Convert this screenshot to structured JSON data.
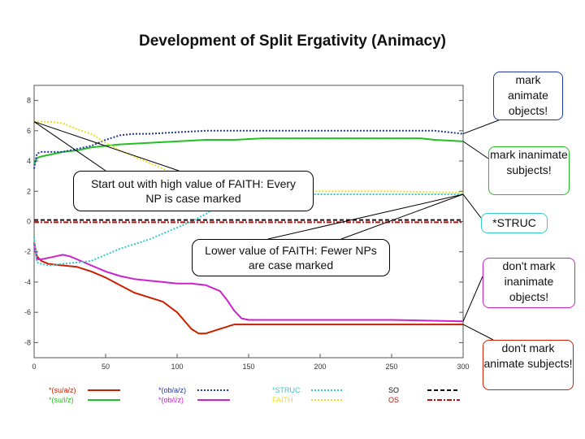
{
  "title": "Development of Split Ergativity (Animacy)",
  "colors": {
    "su_a": "#cc1f00",
    "su_i": "#22c022",
    "ob_a": "#2233aa",
    "ob_i": "#cc22cc",
    "struc": "#33cccc",
    "faith": "#eedd22",
    "so": "#111111",
    "os": "#bb1111"
  },
  "callouts": {
    "start": "Start out with high value of FAITH: Every NP is case marked",
    "lower": "Lower value of FAITH: Fewer NPs are case marked"
  },
  "notes": {
    "mark_animate_objects": "mark animate objects!",
    "mark_inanimate_subjects": "mark inanimate subjects!",
    "struc": "*STRUC",
    "dont_mark_inanimate_objects": "don't mark inanimate objects!",
    "dont_mark_animate_subjects": "don't mark animate subjects!"
  },
  "chart_data": {
    "type": "line",
    "title": "",
    "xlabel": "",
    "ylabel": "",
    "xlim": [
      0,
      300
    ],
    "ylim": [
      -9,
      9
    ],
    "xticks": [
      0,
      50,
      100,
      150,
      200,
      250,
      300
    ],
    "yticks": [
      -8,
      -6,
      -4,
      -2,
      0,
      2,
      4,
      6,
      8
    ],
    "grid": false,
    "legend_position": "bottom",
    "series": [
      {
        "name": "*(su/a/z)",
        "color_key": "su_a",
        "dash": "solid",
        "x": [
          0,
          2,
          5,
          10,
          20,
          30,
          40,
          50,
          60,
          70,
          80,
          90,
          100,
          110,
          115,
          120,
          130,
          140,
          150,
          160,
          200,
          250,
          280,
          300
        ],
        "y": [
          -1.4,
          -2.3,
          -2.6,
          -2.8,
          -2.9,
          -3.0,
          -3.3,
          -3.7,
          -4.2,
          -4.7,
          -5.0,
          -5.3,
          -6.0,
          -7.1,
          -7.4,
          -7.4,
          -7.1,
          -6.8,
          -6.8,
          -6.8,
          -6.8,
          -6.8,
          -6.8,
          -6.8
        ]
      },
      {
        "name": "*(su/i/z)",
        "color_key": "su_i",
        "dash": "solid",
        "x": [
          0,
          2,
          5,
          10,
          20,
          30,
          40,
          50,
          60,
          80,
          100,
          120,
          140,
          160,
          200,
          250,
          270,
          280,
          300
        ],
        "y": [
          3.8,
          4.2,
          4.3,
          4.4,
          4.6,
          4.7,
          4.9,
          5.0,
          5.1,
          5.2,
          5.3,
          5.4,
          5.4,
          5.5,
          5.5,
          5.5,
          5.5,
          5.4,
          5.3
        ]
      },
      {
        "name": "*(ob/a/z)",
        "color_key": "ob_a",
        "dash": "dotted",
        "x": [
          0,
          2,
          5,
          10,
          20,
          30,
          40,
          50,
          60,
          70,
          80,
          100,
          120,
          140,
          160,
          200,
          250,
          280,
          290,
          300
        ],
        "y": [
          3.5,
          4.5,
          4.6,
          4.6,
          4.6,
          4.8,
          5.0,
          5.4,
          5.7,
          5.8,
          5.8,
          5.9,
          6.0,
          6.0,
          6.0,
          6.0,
          6.0,
          6.0,
          5.9,
          5.8
        ]
      },
      {
        "name": "*(ob/i/z)",
        "color_key": "ob_i",
        "dash": "solid",
        "x": [
          0,
          2,
          5,
          10,
          15,
          20,
          25,
          30,
          40,
          50,
          60,
          70,
          80,
          90,
          100,
          110,
          120,
          130,
          135,
          140,
          145,
          150,
          160,
          200,
          250,
          300
        ],
        "y": [
          -1.5,
          -2.5,
          -2.5,
          -2.4,
          -2.3,
          -2.2,
          -2.3,
          -2.5,
          -2.9,
          -3.3,
          -3.6,
          -3.8,
          -3.9,
          -4.0,
          -4.1,
          -4.1,
          -4.2,
          -4.6,
          -5.2,
          -5.9,
          -6.4,
          -6.5,
          -6.5,
          -6.5,
          -6.5,
          -6.6
        ]
      },
      {
        "name": "*STRUC",
        "color_key": "struc",
        "dash": "dotted",
        "x": [
          0,
          2,
          5,
          10,
          20,
          30,
          40,
          50,
          60,
          70,
          80,
          90,
          100,
          110,
          120,
          130,
          140,
          150,
          160,
          200,
          250,
          300
        ],
        "y": [
          -1.0,
          -2.7,
          -2.8,
          -2.9,
          -2.8,
          -2.7,
          -2.6,
          -2.2,
          -1.8,
          -1.5,
          -1.2,
          -0.8,
          -0.4,
          0.0,
          0.5,
          1.1,
          1.7,
          1.8,
          1.8,
          1.8,
          1.8,
          1.8
        ]
      },
      {
        "name": "FAITH",
        "color_key": "faith",
        "dash": "dotted",
        "x": [
          0,
          5,
          10,
          20,
          30,
          40,
          50,
          60,
          70,
          80,
          90,
          100,
          110,
          120,
          130,
          140,
          150,
          160,
          200,
          250,
          300
        ],
        "y": [
          6.6,
          6.6,
          6.6,
          6.5,
          6.1,
          5.8,
          5.2,
          4.7,
          4.3,
          3.9,
          3.5,
          3.0,
          2.6,
          2.3,
          2.1,
          2.0,
          2.0,
          2.0,
          2.0,
          2.0,
          1.9
        ]
      },
      {
        "name": "SO",
        "color_key": "so",
        "dash": "dashed",
        "x": [
          0,
          300
        ],
        "y": [
          0.1,
          0.1
        ]
      },
      {
        "name": "OS",
        "color_key": "os",
        "dash": "dashdot",
        "x": [
          0,
          300
        ],
        "y": [
          -0.05,
          -0.05
        ]
      }
    ]
  }
}
